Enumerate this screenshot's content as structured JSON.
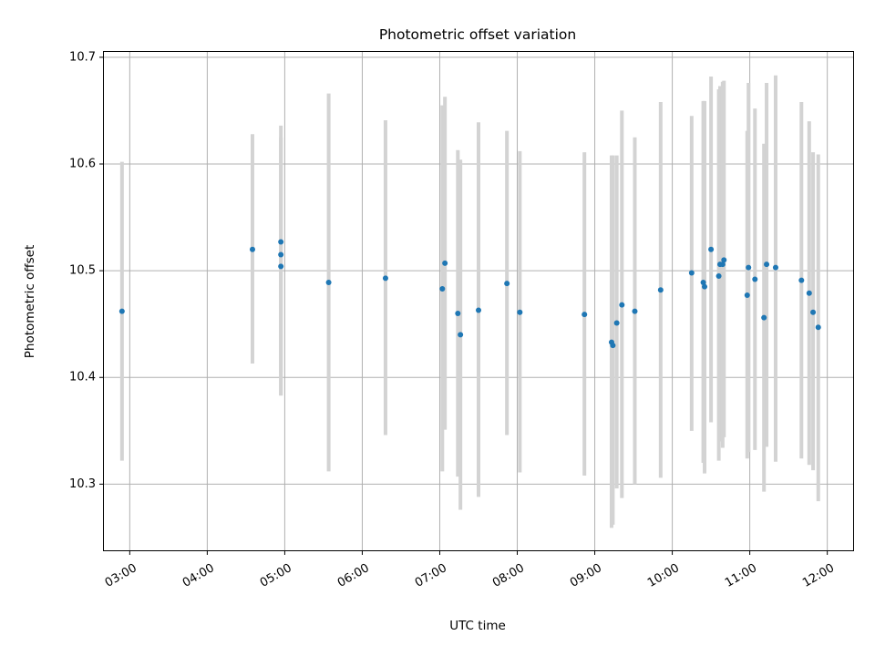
{
  "chart_data": {
    "type": "scatter",
    "title": "Photometric offset variation",
    "xlabel": "UTC time",
    "ylabel": "Photometric offset",
    "xlim": [
      "02:40",
      "12:20"
    ],
    "ylim": [
      10.238,
      10.705
    ],
    "grid": true,
    "error_bar_color": "#d3d3d3",
    "marker_color": "#1f77b4",
    "x_ticks": [
      "03:00",
      "04:00",
      "05:00",
      "06:00",
      "07:00",
      "08:00",
      "09:00",
      "10:00",
      "11:00",
      "12:00"
    ],
    "y_ticks": [
      "10.3",
      "10.4",
      "10.5",
      "10.6",
      "10.7"
    ],
    "points": [
      {
        "x": "02:54",
        "y": 10.462,
        "lo": 10.322,
        "hi": 10.602
      },
      {
        "x": "04:35",
        "y": 10.52,
        "lo": 10.413,
        "hi": 10.628
      },
      {
        "x": "04:57",
        "y": 10.527,
        "lo": 10.383,
        "hi": 10.636
      },
      {
        "x": "04:57",
        "y": 10.515,
        "lo": 10.405,
        "hi": 10.625
      },
      {
        "x": "04:57",
        "y": 10.504,
        "lo": 10.383,
        "hi": 10.625
      },
      {
        "x": "05:34",
        "y": 10.489,
        "lo": 10.312,
        "hi": 10.666
      },
      {
        "x": "06:18",
        "y": 10.493,
        "lo": 10.346,
        "hi": 10.641
      },
      {
        "x": "07:02",
        "y": 10.483,
        "lo": 10.312,
        "hi": 10.655
      },
      {
        "x": "07:04",
        "y": 10.507,
        "lo": 10.351,
        "hi": 10.663
      },
      {
        "x": "07:14",
        "y": 10.46,
        "lo": 10.307,
        "hi": 10.613
      },
      {
        "x": "07:16",
        "y": 10.44,
        "lo": 10.276,
        "hi": 10.604
      },
      {
        "x": "07:30",
        "y": 10.463,
        "lo": 10.288,
        "hi": 10.639
      },
      {
        "x": "07:52",
        "y": 10.488,
        "lo": 10.346,
        "hi": 10.631
      },
      {
        "x": "08:02",
        "y": 10.461,
        "lo": 10.311,
        "hi": 10.612
      },
      {
        "x": "08:52",
        "y": 10.459,
        "lo": 10.308,
        "hi": 10.611
      },
      {
        "x": "09:13",
        "y": 10.433,
        "lo": 10.259,
        "hi": 10.608
      },
      {
        "x": "09:14",
        "y": 10.43,
        "lo": 10.262,
        "hi": 10.608
      },
      {
        "x": "09:17",
        "y": 10.451,
        "lo": 10.296,
        "hi": 10.608
      },
      {
        "x": "09:21",
        "y": 10.468,
        "lo": 10.287,
        "hi": 10.65
      },
      {
        "x": "09:31",
        "y": 10.462,
        "lo": 10.3,
        "hi": 10.625
      },
      {
        "x": "09:51",
        "y": 10.482,
        "lo": 10.306,
        "hi": 10.658
      },
      {
        "x": "10:15",
        "y": 10.498,
        "lo": 10.35,
        "hi": 10.645
      },
      {
        "x": "10:24",
        "y": 10.489,
        "lo": 10.32,
        "hi": 10.659
      },
      {
        "x": "10:25",
        "y": 10.485,
        "lo": 10.31,
        "hi": 10.659
      },
      {
        "x": "10:30",
        "y": 10.52,
        "lo": 10.358,
        "hi": 10.682
      },
      {
        "x": "10:36",
        "y": 10.495,
        "lo": 10.322,
        "hi": 10.67
      },
      {
        "x": "10:37",
        "y": 10.506,
        "lo": 10.34,
        "hi": 10.673
      },
      {
        "x": "10:39",
        "y": 10.506,
        "lo": 10.334,
        "hi": 10.677
      },
      {
        "x": "10:40",
        "y": 10.51,
        "lo": 10.344,
        "hi": 10.678
      },
      {
        "x": "10:58",
        "y": 10.477,
        "lo": 10.324,
        "hi": 10.631
      },
      {
        "x": "10:59",
        "y": 10.503,
        "lo": 10.33,
        "hi": 10.676
      },
      {
        "x": "11:04",
        "y": 10.492,
        "lo": 10.332,
        "hi": 10.652
      },
      {
        "x": "11:11",
        "y": 10.456,
        "lo": 10.293,
        "hi": 10.619
      },
      {
        "x": "11:13",
        "y": 10.506,
        "lo": 10.335,
        "hi": 10.676
      },
      {
        "x": "11:20",
        "y": 10.503,
        "lo": 10.321,
        "hi": 10.683
      },
      {
        "x": "11:40",
        "y": 10.491,
        "lo": 10.324,
        "hi": 10.658
      },
      {
        "x": "11:46",
        "y": 10.479,
        "lo": 10.318,
        "hi": 10.64
      },
      {
        "x": "11:49",
        "y": 10.461,
        "lo": 10.313,
        "hi": 10.611
      },
      {
        "x": "11:53",
        "y": 10.447,
        "lo": 10.284,
        "hi": 10.609
      }
    ]
  }
}
